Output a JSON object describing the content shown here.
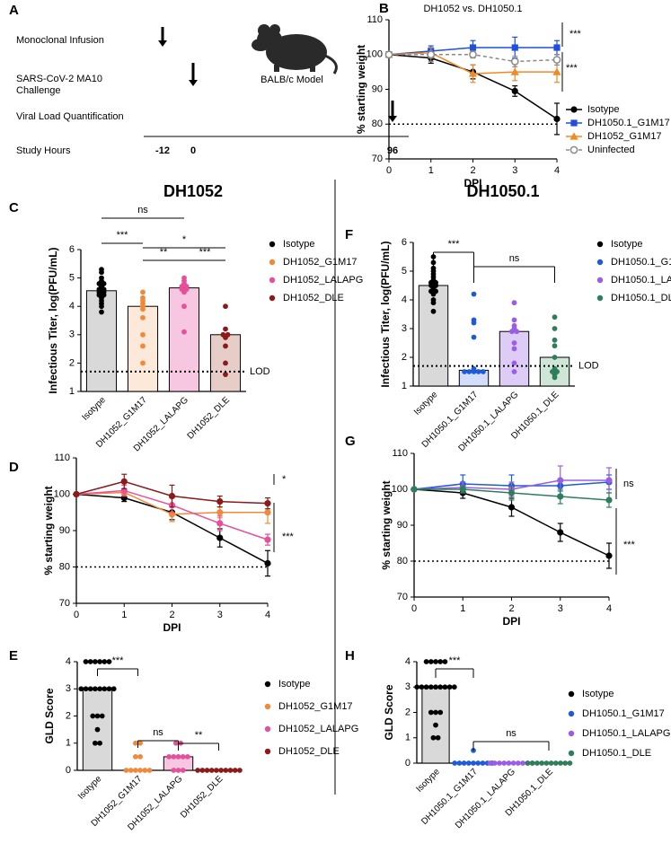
{
  "panels": [
    "A",
    "B",
    "C",
    "F",
    "D",
    "G",
    "E",
    "H"
  ],
  "headings": [
    "DH1052",
    "DH1050.1"
  ],
  "timeline": {
    "rows": [
      [
        "Monoclonal Infusion"
      ],
      [
        "SARS-CoV-2 MA10",
        "Challenge"
      ],
      [
        "Viral Load Quantification"
      ]
    ],
    "axis_label": "Study Hours",
    "hours": [
      -12,
      0,
      96
    ],
    "model": "BALB/c Model"
  },
  "chart_data": [
    {
      "type": "line",
      "title": "DH1052 vs. DH1050.1",
      "xlabel": "DPI",
      "ylabel": "% starting weight",
      "x": [
        0,
        1,
        2,
        3,
        4
      ],
      "xlim": [
        0,
        4
      ],
      "xticks": [
        0,
        1,
        2,
        3,
        4
      ],
      "ylim": [
        70,
        110
      ],
      "yticks": [
        70,
        80,
        90,
        100,
        110
      ],
      "hline": 80,
      "legend": "right",
      "series": [
        {
          "name": "Isotype",
          "color": "#000000",
          "marker": "circle",
          "values": [
            100,
            99,
            95,
            89.5,
            81.5
          ],
          "errors": [
            0,
            1.5,
            2,
            1.5,
            4.5
          ]
        },
        {
          "name": "DH1050.1_G1M17",
          "color": "#1f4fe0",
          "marker": "square",
          "values": [
            100,
            101,
            102,
            102,
            102
          ],
          "errors": [
            0,
            1.5,
            2,
            3,
            2
          ]
        },
        {
          "name": "DH1052_G1M17",
          "color": "#f08a24",
          "marker": "triangle",
          "values": [
            100,
            100.5,
            94.5,
            95,
            95
          ],
          "errors": [
            0,
            1.5,
            2.5,
            2.5,
            3
          ]
        },
        {
          "name": "Uninfected",
          "color": "#8a8a8a",
          "marker": "open-circle",
          "dash": true,
          "values": [
            100,
            100,
            100,
            98,
            98.5
          ],
          "errors": [
            0,
            2,
            1,
            1.5,
            1.5
          ]
        }
      ],
      "annotations": [
        "***",
        "***"
      ]
    },
    {
      "type": "bar",
      "ylabel": "Infectious Titer, log(PFU/mL)",
      "ylim": [
        1,
        6
      ],
      "yticks": [
        1,
        2,
        3,
        4,
        5,
        6
      ],
      "legend": "right",
      "categories": [
        "Isotype",
        "DH1052_G1M17",
        "DH1052_LALAPG",
        "DH1052_DLE"
      ],
      "values": [
        4.55,
        4.0,
        4.65,
        3.0
      ],
      "bar_colors": [
        "#d9d9d9",
        "#fde9d9",
        "#f7c6e0",
        "#e6cdc8"
      ],
      "colors": [
        "#000000",
        "#f08a3a",
        "#e6509a",
        "#8b1a1a"
      ],
      "points": [
        [
          5.3,
          5.2,
          5.0,
          4.9,
          4.8,
          4.8,
          4.7,
          4.6,
          4.6,
          4.55,
          4.5,
          4.5,
          4.45,
          4.4,
          4.4,
          4.3,
          4.2,
          4.1,
          4.0,
          3.8
        ],
        [
          4.5,
          4.3,
          4.2,
          4.1,
          4.0,
          3.9,
          3.6,
          3.0,
          2.6,
          2.0
        ],
        [
          5.0,
          4.9,
          4.8,
          4.7,
          4.7,
          4.6,
          4.6,
          4.5,
          4.0,
          3.1
        ],
        [
          4.0,
          3.2,
          3.0,
          3.0,
          2.9,
          2.6,
          2.0,
          1.6
        ]
      ],
      "lod": {
        "value": 1.7,
        "label": "LOD"
      },
      "comparisons": [
        {
          "label": "ns",
          "between": [
            0,
            2
          ]
        },
        {
          "label": "***",
          "between": [
            0,
            1
          ]
        },
        {
          "label": "*",
          "between": [
            1,
            3
          ]
        },
        {
          "label": "**",
          "between": [
            1,
            2
          ]
        },
        {
          "label": "***",
          "between": [
            2,
            3
          ]
        }
      ]
    },
    {
      "type": "bar",
      "ylabel": "Infectious Titer, log(PFU/mL)",
      "ylim": [
        1,
        6
      ],
      "yticks": [
        1,
        2,
        3,
        4,
        5,
        6
      ],
      "legend": "right",
      "categories": [
        "Isotype",
        "DH1050.1_G1M17",
        "DH1050.1_LALAPG",
        "DH1050.1_DLE"
      ],
      "values": [
        4.5,
        1.55,
        2.9,
        2.0
      ],
      "bar_colors": [
        "#d9d9d9",
        "#d3dcf8",
        "#ddcdf6",
        "#cfe6d6"
      ],
      "colors": [
        "#000000",
        "#1f5bd8",
        "#9b5de5",
        "#2e7d5b"
      ],
      "points": [
        [
          5.5,
          5.3,
          5.1,
          5.0,
          4.9,
          4.8,
          4.7,
          4.6,
          4.6,
          4.55,
          4.5,
          4.5,
          4.45,
          4.4,
          4.3,
          4.3,
          4.2,
          4.0,
          3.9,
          3.6
        ],
        [
          4.2,
          3.3,
          3.2,
          2.7,
          1.6,
          1.5,
          1.5,
          1.5,
          1.5,
          1.5
        ],
        [
          3.9,
          3.3,
          3.1,
          3.0,
          2.9,
          2.9,
          2.5,
          2.3,
          1.8,
          1.5
        ],
        [
          3.4,
          3.0,
          2.6,
          2.4,
          2.0,
          1.6,
          1.5,
          1.5,
          1.4,
          1.3
        ]
      ],
      "lod": {
        "value": 1.7,
        "label": "LOD"
      },
      "comparisons": [
        {
          "label": "***",
          "between": [
            0,
            1
          ]
        },
        {
          "label": "ns",
          "between": [
            1,
            3
          ]
        }
      ]
    },
    {
      "type": "line",
      "xlabel": "DPI",
      "ylabel": "% starting weight",
      "x": [
        0,
        1,
        2,
        3,
        4
      ],
      "xlim": [
        0,
        4
      ],
      "xticks": [
        0,
        1,
        2,
        3,
        4
      ],
      "ylim": [
        70,
        110
      ],
      "yticks": [
        70,
        80,
        90,
        100,
        110
      ],
      "hline": 80,
      "series": [
        {
          "color": "#000000",
          "marker": "circle",
          "values": [
            100,
            99,
            95,
            88,
            81
          ],
          "errors": [
            0,
            1,
            2,
            2.5,
            3.5
          ]
        },
        {
          "color": "#f08a3a",
          "marker": "circle",
          "values": [
            100,
            100.5,
            94.5,
            95,
            95
          ],
          "errors": [
            0,
            1,
            2,
            1.5,
            3
          ]
        },
        {
          "color": "#e6509a",
          "marker": "circle",
          "values": [
            100,
            101,
            97,
            92,
            87.5
          ],
          "errors": [
            0,
            1.5,
            2,
            2,
            1.5
          ]
        },
        {
          "color": "#8b1a1a",
          "marker": "circle",
          "values": [
            100,
            103.5,
            99.5,
            98,
            97.5
          ],
          "errors": [
            0,
            2,
            3,
            1.5,
            1.5
          ]
        }
      ],
      "annotations": [
        "*",
        "***"
      ]
    },
    {
      "type": "line",
      "xlabel": "DPI",
      "ylabel": "% starting weight",
      "x": [
        0,
        1,
        2,
        3,
        4
      ],
      "xlim": [
        0,
        4
      ],
      "xticks": [
        0,
        1,
        2,
        3,
        4
      ],
      "ylim": [
        70,
        110
      ],
      "yticks": [
        70,
        80,
        90,
        100,
        110
      ],
      "hline": 80,
      "series": [
        {
          "color": "#000000",
          "marker": "circle",
          "values": [
            100,
            99,
            95,
            88,
            81.5
          ],
          "errors": [
            0,
            1.5,
            2.5,
            2.5,
            3.5
          ]
        },
        {
          "color": "#1f5bd8",
          "marker": "circle",
          "values": [
            100,
            101.5,
            101,
            101,
            102
          ],
          "errors": [
            0,
            2.5,
            3,
            1.5,
            2
          ]
        },
        {
          "color": "#9b5de5",
          "marker": "circle",
          "values": [
            100,
            100.5,
            100,
            102.5,
            102.5
          ],
          "errors": [
            0,
            1.5,
            2,
            4,
            3.5
          ]
        },
        {
          "color": "#2e7d5b",
          "marker": "circle",
          "values": [
            100,
            100,
            99,
            98,
            97
          ],
          "errors": [
            0,
            1,
            2,
            2,
            2
          ]
        }
      ],
      "annotations": [
        "ns",
        "***"
      ]
    },
    {
      "type": "bar",
      "ylabel": "GLD Score",
      "ylim": [
        0,
        4
      ],
      "yticks": [
        0,
        1,
        2,
        3,
        4
      ],
      "legend": "right",
      "categories": [
        "Isotype",
        "DH1052_G1M17",
        "DH1052_LALAPG",
        "DH1052_DLE"
      ],
      "values": [
        3.0,
        0,
        0.5,
        0
      ],
      "bar_colors": [
        "#d9d9d9",
        "#fde9d9",
        "#f7c6e0",
        "#e6cdc8"
      ],
      "colors": [
        "#000000",
        "#f08a3a",
        "#e6509a",
        "#8b1a1a"
      ],
      "points": [
        [
          4,
          4,
          4,
          4,
          4,
          4,
          3,
          3,
          3,
          3,
          3,
          3,
          3,
          3,
          2,
          2,
          2,
          1.5,
          1,
          1
        ],
        [
          1,
          1,
          0.5,
          0.5,
          0,
          0,
          0,
          0,
          0,
          0
        ],
        [
          1,
          1,
          0.5,
          0.5,
          0.5,
          0.5,
          0.5,
          0,
          0,
          0
        ],
        [
          0,
          0,
          0,
          0,
          0,
          0,
          0,
          0,
          0,
          0
        ]
      ],
      "comparisons": [
        {
          "label": "***",
          "between": [
            0,
            1
          ]
        },
        {
          "label": "ns",
          "between": [
            1,
            2
          ]
        },
        {
          "label": "**",
          "between": [
            2,
            3
          ]
        }
      ]
    },
    {
      "type": "bar",
      "ylabel": "GLD Score",
      "ylim": [
        0,
        4
      ],
      "yticks": [
        0,
        1,
        2,
        3,
        4
      ],
      "legend": "right",
      "categories": [
        "Isotype",
        "DH1050.1_G1M17",
        "DH1050.1_LALAPG",
        "DH1050.1_DLE"
      ],
      "values": [
        3.0,
        0,
        0,
        0
      ],
      "bar_colors": [
        "#d9d9d9",
        "#d3dcf8",
        "#ddcdf6",
        "#cfe6d6"
      ],
      "colors": [
        "#000000",
        "#1f5bd8",
        "#9b5de5",
        "#2e7d5b"
      ],
      "points": [
        [
          4,
          4,
          4,
          4,
          4,
          3,
          3,
          3,
          3,
          3,
          3,
          3,
          3,
          3,
          2,
          2,
          2,
          1.5,
          1,
          1
        ],
        [
          0.5,
          0,
          0,
          0,
          0,
          0,
          0,
          0,
          0,
          0
        ],
        [
          0,
          0,
          0,
          0,
          0,
          0,
          0,
          0,
          0,
          0
        ],
        [
          0,
          0,
          0,
          0,
          0,
          0,
          0,
          0,
          0,
          0
        ]
      ],
      "comparisons": [
        {
          "label": "***",
          "between": [
            0,
            1
          ]
        },
        {
          "label": "ns",
          "between": [
            1,
            3
          ]
        }
      ]
    }
  ]
}
